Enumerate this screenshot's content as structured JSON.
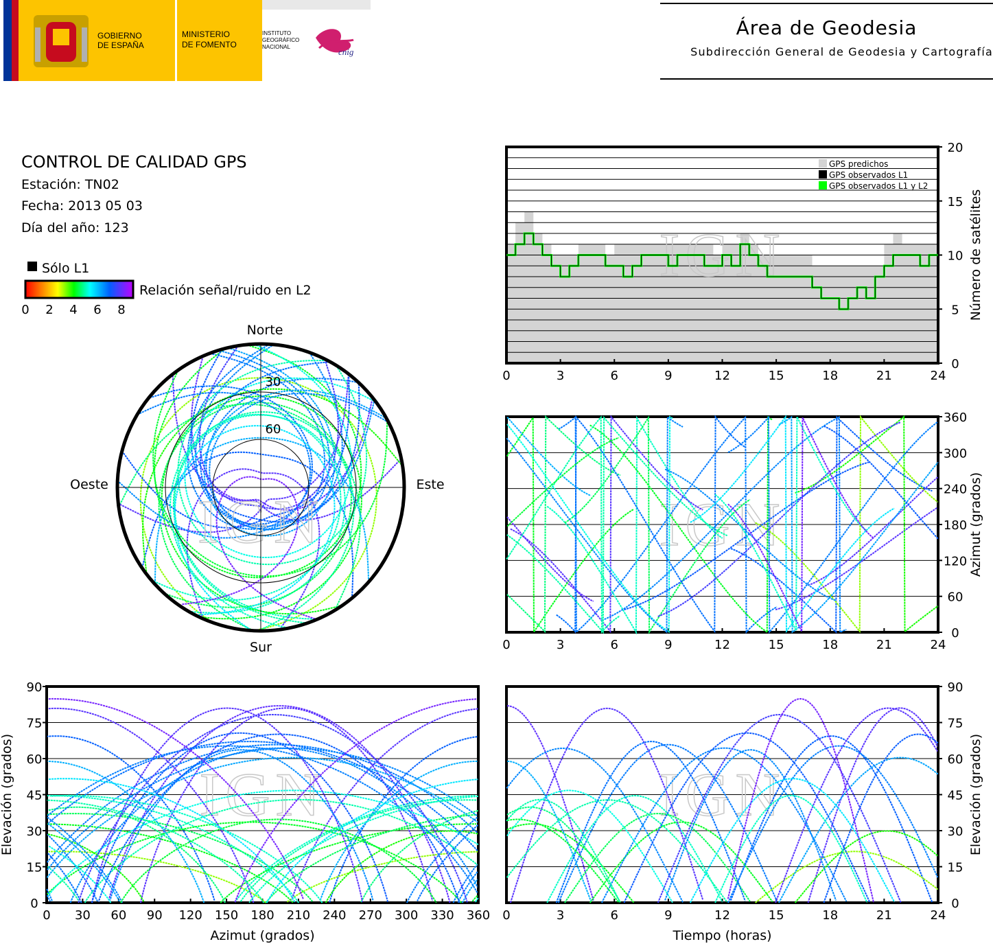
{
  "header": {
    "gov_line1": "GOBIERNO",
    "gov_line2": "DE ESPAÑA",
    "ministry_line1": "MINISTERIO",
    "ministry_line2": "DE FOMENTO",
    "inst_line1": "INSTITUTO",
    "inst_line2": "GEOGRÁFICO",
    "inst_line3": "NACIONAL",
    "cnig": "cnig",
    "title": "Área de Geodesia",
    "subtitle": "Subdirección General de Geodesia y Cartografía"
  },
  "info": {
    "title": "CONTROL DE CALIDAD GPS",
    "station": "Estación: TN02",
    "date": "Fecha: 2013 05 03",
    "doy": "Día del año: 123"
  },
  "legend": {
    "l1_only": "Sólo L1",
    "snr_label": "Relación señal/ruido en L2",
    "snr_ticks": [
      "0",
      "2",
      "4",
      "6",
      "8"
    ],
    "colors": {
      "snr_low": "#ff0000",
      "snr_mid": "#00ff00",
      "snr_high": "#8000ff",
      "l1_only": "#000000",
      "predicted": "#d4d4d4",
      "observed_l1": "#000000",
      "observed_l1l2": "#00ff00"
    }
  },
  "watermark": "IGN",
  "chart_data": [
    {
      "type": "skyplot",
      "labels": {
        "north": "Norte",
        "south": "Sur",
        "east": "Este",
        "west": "Oeste"
      },
      "rings": [
        "30",
        "60"
      ]
    },
    {
      "type": "area",
      "ylabel": "Número de satélites",
      "xlim": [
        0,
        24
      ],
      "ylim": [
        0,
        20
      ],
      "x_ticks": [
        "0",
        "3",
        "6",
        "9",
        "12",
        "15",
        "18",
        "21",
        "24"
      ],
      "y_ticks": [
        "0",
        "5",
        "10",
        "15",
        "20"
      ],
      "grid": true,
      "legend": [
        "GPS predichos",
        "GPS observados L1",
        "GPS observados L1 y L2"
      ],
      "legend_position": "top-right",
      "x": [
        0.0,
        0.5,
        1.0,
        1.5,
        2.0,
        2.5,
        3.0,
        3.5,
        4.0,
        4.5,
        5.0,
        5.5,
        6.0,
        6.5,
        7.0,
        7.5,
        8.0,
        8.5,
        9.0,
        9.5,
        10.0,
        10.5,
        11.0,
        11.5,
        12.0,
        12.5,
        13.0,
        13.5,
        14.0,
        14.5,
        15.0,
        15.5,
        16.0,
        16.5,
        17.0,
        17.5,
        18.0,
        18.5,
        19.0,
        19.5,
        20.0,
        20.5,
        21.0,
        21.5,
        22.0,
        22.5,
        23.0,
        23.5,
        24.0
      ],
      "series": [
        {
          "name": "GPS predichos",
          "values": [
            11,
            13,
            14,
            12,
            11,
            10,
            10,
            10,
            11,
            11,
            11,
            10,
            11,
            11,
            11,
            11,
            11,
            11,
            11,
            11,
            11,
            11,
            11,
            10,
            11,
            11,
            12,
            11,
            10,
            10,
            10,
            10,
            10,
            10,
            9,
            9,
            9,
            9,
            9,
            9,
            9,
            9,
            11,
            12,
            11,
            11,
            11,
            11,
            11
          ]
        },
        {
          "name": "GPS observados L1 y L2",
          "values": [
            10,
            11,
            12,
            11,
            10,
            9,
            8,
            9,
            10,
            10,
            10,
            9,
            9,
            8,
            9,
            10,
            10,
            10,
            9,
            10,
            10,
            10,
            9,
            9,
            10,
            9,
            11,
            10,
            9,
            8,
            8,
            8,
            8,
            8,
            7,
            6,
            6,
            5,
            6,
            7,
            6,
            8,
            9,
            10,
            10,
            10,
            9,
            10,
            10
          ]
        },
        {
          "name": "GPS observados L1",
          "values": [
            10,
            11,
            12,
            11,
            10,
            9,
            8,
            9,
            10,
            10,
            10,
            9,
            9,
            8,
            9,
            10,
            10,
            10,
            9,
            10,
            10,
            10,
            9,
            9,
            10,
            9,
            11,
            10,
            9,
            8,
            8,
            8,
            8,
            8,
            7,
            6,
            6,
            5,
            6,
            7,
            6,
            8,
            9,
            10,
            10,
            10,
            9,
            10,
            10
          ]
        }
      ]
    },
    {
      "type": "scatter",
      "ylabel": "Azimut (grados)",
      "xlim": [
        0,
        24
      ],
      "ylim": [
        0,
        360
      ],
      "x_ticks": [
        "0",
        "3",
        "6",
        "9",
        "12",
        "15",
        "18",
        "21",
        "24"
      ],
      "y_ticks": [
        "0",
        "60",
        "120",
        "180",
        "240",
        "300",
        "360"
      ],
      "grid": true
    },
    {
      "type": "scatter",
      "xlabel": "Azimut (grados)",
      "ylabel": "Elevación (grados)",
      "xlim": [
        0,
        360
      ],
      "ylim": [
        0,
        90
      ],
      "x_ticks": [
        "0",
        "30",
        "60",
        "90",
        "120",
        "150",
        "180",
        "210",
        "240",
        "270",
        "300",
        "330",
        "360"
      ],
      "y_ticks": [
        "0",
        "15",
        "30",
        "45",
        "60",
        "75",
        "90"
      ],
      "grid": true
    },
    {
      "type": "scatter",
      "xlabel": "Tiempo (horas)",
      "ylabel": "Elevación (grados)",
      "xlim": [
        0,
        24
      ],
      "ylim": [
        0,
        90
      ],
      "x_ticks": [
        "0",
        "3",
        "6",
        "9",
        "12",
        "15",
        "18",
        "21",
        "24"
      ],
      "y_ticks": [
        "0",
        "15",
        "30",
        "45",
        "60",
        "75",
        "90"
      ],
      "grid": true
    }
  ]
}
